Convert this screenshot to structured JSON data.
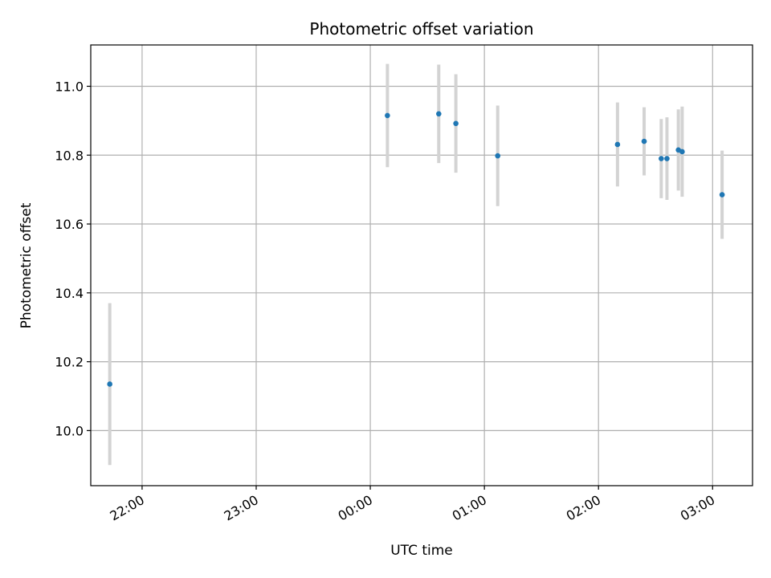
{
  "chart_data": {
    "type": "scatter",
    "title": "Photometric offset variation",
    "xlabel": "UTC time",
    "ylabel": "Photometric offset",
    "x_tick_labels": [
      "22:00",
      "23:00",
      "00:00",
      "01:00",
      "02:00",
      "03:00"
    ],
    "y_tick_labels": [
      "10.0",
      "10.2",
      "10.4",
      "10.6",
      "10.8",
      "11.0"
    ],
    "y_ticks": [
      10.0,
      10.2,
      10.4,
      10.6,
      10.8,
      11.0
    ],
    "ylim": [
      9.84,
      11.12
    ],
    "xlim": [
      "21:33",
      "03:21"
    ],
    "grid": true,
    "colors": {
      "marker": "#1f77b4",
      "errorbar": "#d3d3d3",
      "grid": "#b0b0b0"
    },
    "points": [
      {
        "time": "21:43",
        "y": 10.135,
        "err": 0.235
      },
      {
        "time": "00:09",
        "y": 10.915,
        "err": 0.15
      },
      {
        "time": "00:36",
        "y": 10.92,
        "err": 0.143
      },
      {
        "time": "00:45",
        "y": 10.892,
        "err": 0.143
      },
      {
        "time": "01:07",
        "y": 10.798,
        "err": 0.146
      },
      {
        "time": "02:10",
        "y": 10.831,
        "err": 0.122
      },
      {
        "time": "02:24",
        "y": 10.84,
        "err": 0.099
      },
      {
        "time": "02:33",
        "y": 10.79,
        "err": 0.115
      },
      {
        "time": "02:36",
        "y": 10.79,
        "err": 0.12
      },
      {
        "time": "02:42",
        "y": 10.815,
        "err": 0.118
      },
      {
        "time": "02:44",
        "y": 10.81,
        "err": 0.131
      },
      {
        "time": "03:05",
        "y": 10.685,
        "err": 0.128
      }
    ]
  }
}
